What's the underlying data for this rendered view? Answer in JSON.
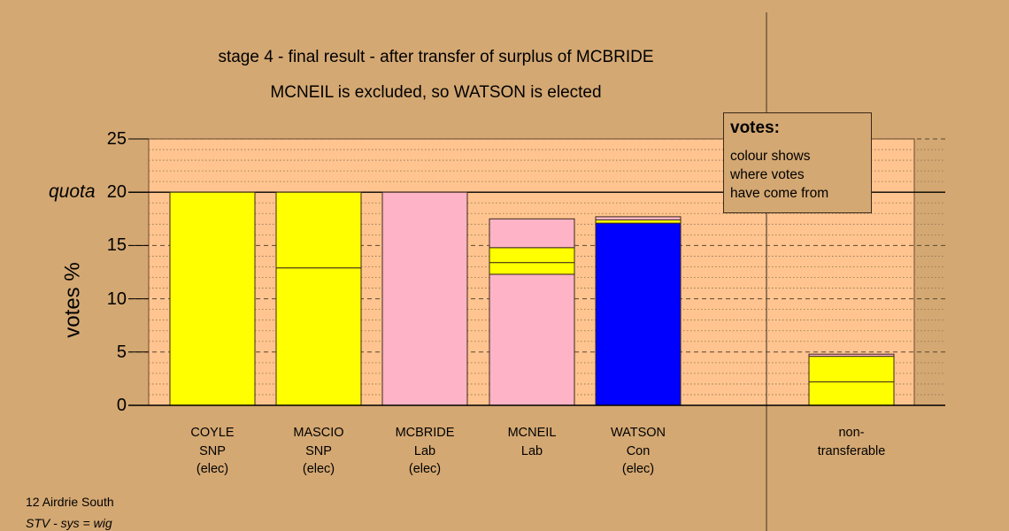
{
  "chart_data": {
    "type": "bar",
    "stacked": true,
    "title": "stage 4 - final result - after transfer of surplus of MCBRIDE",
    "subtitle": "MCNEIL is excluded, so WATSON is elected",
    "ylabel": "votes %",
    "ylim": [
      0,
      25
    ],
    "yticks": [
      0,
      5,
      10,
      15,
      20,
      25
    ],
    "quota": {
      "label": "quota",
      "value": 20
    },
    "grid": true,
    "categories": [
      {
        "lines": [
          "COYLE",
          "SNP",
          "(elec)"
        ]
      },
      {
        "lines": [
          "MASCIO",
          "SNP",
          "(elec)"
        ]
      },
      {
        "lines": [
          "MCBRIDE",
          "Lab",
          "(elec)"
        ]
      },
      {
        "lines": [
          "MCNEIL",
          "Lab"
        ]
      },
      {
        "lines": [
          "WATSON",
          "Con",
          "(elec)"
        ]
      },
      {
        "lines": [
          "non-",
          "transferable"
        ]
      }
    ],
    "stacks": [
      {
        "category": 0,
        "segments": [
          {
            "value": 20.0,
            "color": "#ffff00"
          }
        ]
      },
      {
        "category": 1,
        "segments": [
          {
            "value": 12.9,
            "color": "#ffff00"
          },
          {
            "value": 7.1,
            "color": "#ffff00"
          }
        ]
      },
      {
        "category": 2,
        "segments": [
          {
            "value": 20.0,
            "color": "#ffb3c6"
          }
        ]
      },
      {
        "category": 3,
        "segments": [
          {
            "value": 12.3,
            "color": "#ffb3c6"
          },
          {
            "value": 1.1,
            "color": "#ffff00"
          },
          {
            "value": 1.4,
            "color": "#ffff00"
          },
          {
            "value": 2.7,
            "color": "#ffb3c6"
          }
        ]
      },
      {
        "category": 4,
        "segments": [
          {
            "value": 17.1,
            "color": "#0000ff"
          },
          {
            "value": 0.3,
            "color": "#ffff00"
          },
          {
            "value": 0.3,
            "color": "#ffb3c6"
          }
        ]
      },
      {
        "category": 5,
        "segments": [
          {
            "value": 2.2,
            "color": "#ffff00"
          },
          {
            "value": 2.4,
            "color": "#ffff00"
          },
          {
            "value": 0.2,
            "color": "#ffb3c6"
          }
        ]
      }
    ],
    "colors": {
      "background": "#d4a873",
      "plot_background": "#ffc48f",
      "snp": "#ffff00",
      "lab": "#ffb3c6",
      "con": "#0000ff"
    },
    "legend_position": "top-right"
  },
  "legend": {
    "title": "votes:",
    "lines": [
      "colour shows",
      "where votes",
      "have come from"
    ]
  },
  "footer": {
    "line1": "12 Airdrie South",
    "line2": "STV - sys = wig"
  }
}
